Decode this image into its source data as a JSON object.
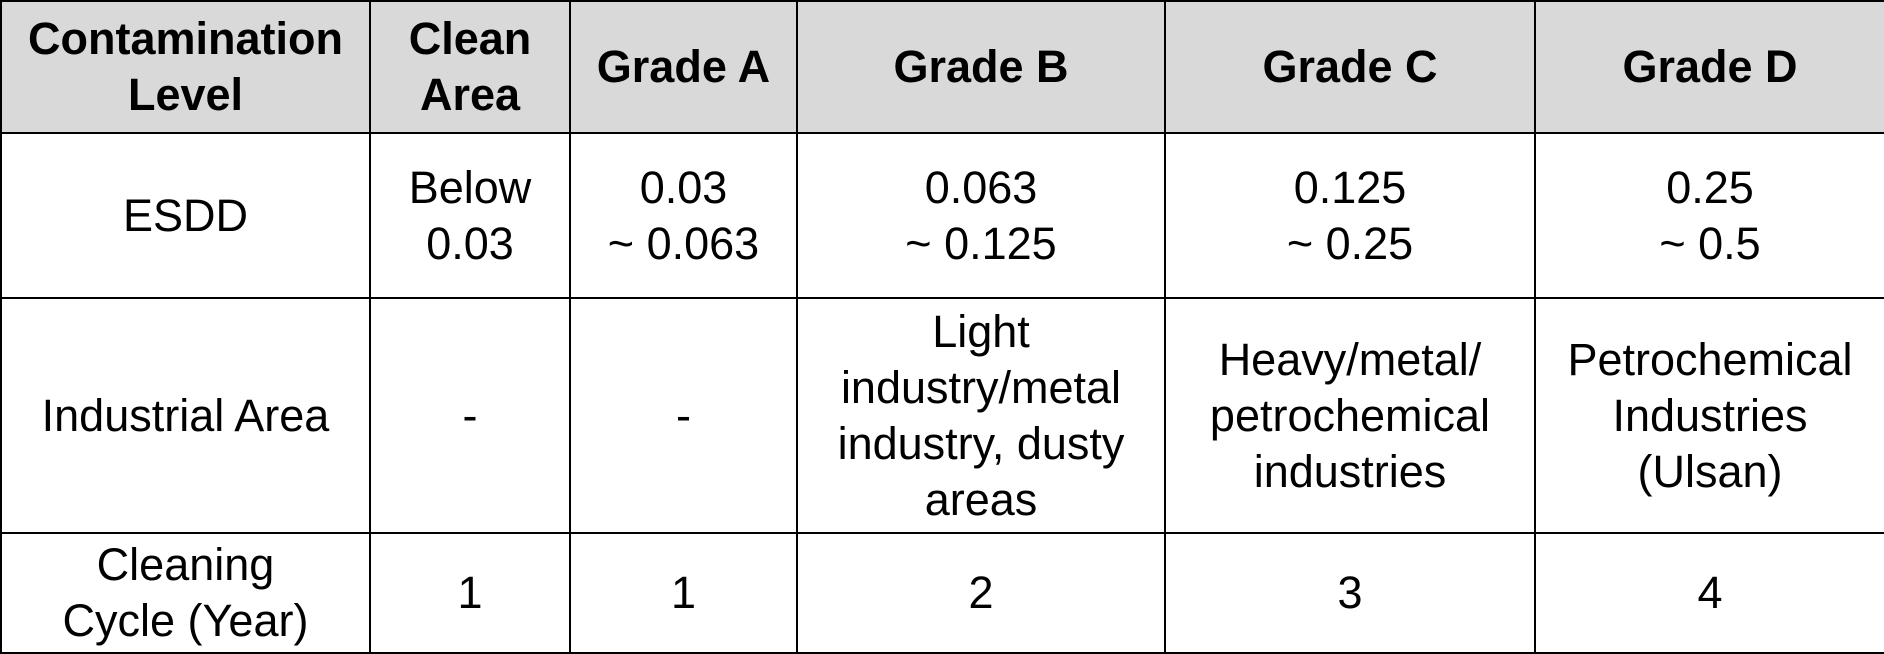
{
  "table": {
    "headers": [
      "Contamination\nLevel",
      "Clean\nArea",
      "Grade A",
      "Grade B",
      "Grade C",
      "Grade D"
    ],
    "rows": [
      {
        "label": "ESDD",
        "cells": [
          "Below\n0.03",
          "0.03\n~ 0.063",
          "0.063\n~ 0.125",
          "0.125\n~ 0.25",
          "0.25\n~    0.5"
        ]
      },
      {
        "label": "Industrial Area",
        "cells": [
          "-",
          "-",
          "Light\nindustry/metal\nindustry, dusty\nareas",
          "Heavy/metal/\npetrochemical\nindustries",
          "Petrochemical\nIndustries\n(Ulsan)"
        ]
      },
      {
        "label": "Cleaning\nCycle (Year)",
        "cells": [
          "1",
          "1",
          "2",
          "3",
          "4"
        ]
      }
    ]
  }
}
